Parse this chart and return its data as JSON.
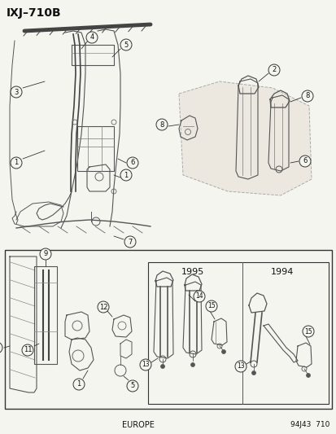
{
  "title": "IXJ–710B",
  "background_color": "#f5f5f0",
  "border_color": "#222222",
  "text_color": "#111111",
  "footer_left": "EUROPE",
  "footer_right": "94J43  710",
  "year_1995": "1995",
  "year_1994": "1994",
  "fig_width": 4.14,
  "fig_height": 5.33,
  "dpi": 100
}
